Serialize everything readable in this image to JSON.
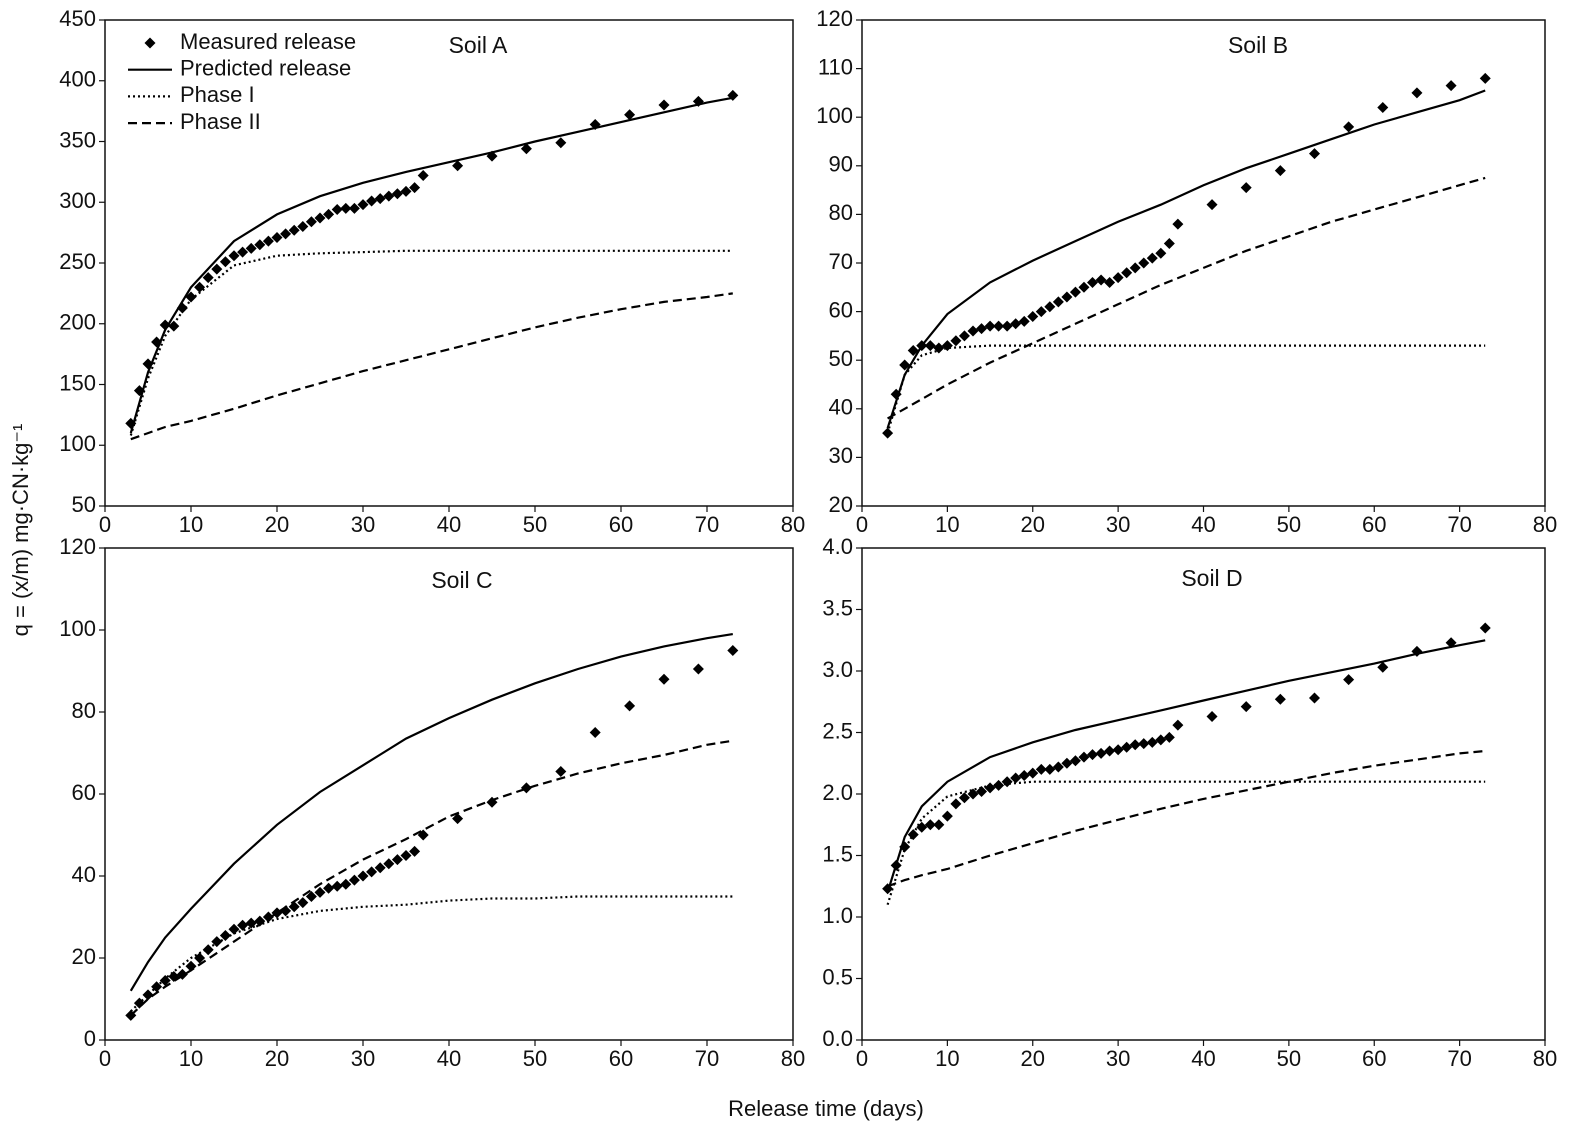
{
  "ylabel": "q = (x/m) mg·CN·kg⁻¹",
  "xlabel": "Release time (days)",
  "chart_data": [
    {
      "type": "line",
      "title": "Soil A",
      "xlim": [
        0,
        80
      ],
      "xticks": [
        0,
        10,
        20,
        30,
        40,
        50,
        60,
        70,
        80
      ],
      "ylim": [
        50,
        450
      ],
      "yticks": [
        50,
        100,
        150,
        200,
        250,
        300,
        350,
        400,
        450
      ],
      "legend": "upper left",
      "series": [
        {
          "name": "Measured release",
          "mode": "markers",
          "color": "#000000",
          "x": [
            3,
            4,
            5,
            6,
            7,
            8,
            9,
            10,
            11,
            12,
            13,
            14,
            15,
            16,
            17,
            18,
            19,
            20,
            21,
            22,
            23,
            24,
            25,
            26,
            27,
            28,
            29,
            30,
            31,
            32,
            33,
            34,
            35,
            36,
            37,
            41,
            45,
            49,
            53,
            57,
            61,
            65,
            69,
            73
          ],
          "values": [
            118,
            145,
            167,
            185,
            199,
            198,
            213,
            222,
            230,
            238,
            245,
            251,
            256,
            259,
            262,
            265,
            268,
            271,
            274,
            277,
            280,
            284,
            287,
            290,
            294,
            295,
            295,
            298,
            301,
            303,
            305,
            307,
            309,
            312,
            322,
            330,
            338,
            344,
            349,
            364,
            372,
            380,
            383,
            388
          ]
        },
        {
          "name": "Predicted release",
          "mode": "lines",
          "dash": "solid",
          "color": "#000000",
          "x": [
            3,
            5,
            7,
            10,
            15,
            20,
            25,
            30,
            35,
            40,
            45,
            50,
            55,
            60,
            65,
            70,
            73
          ],
          "values": [
            110,
            160,
            195,
            230,
            268,
            290,
            305,
            316,
            325,
            333,
            341,
            350,
            358,
            366,
            374,
            382,
            386
          ]
        },
        {
          "name": "Phase I",
          "mode": "lines",
          "dash": "dotted",
          "color": "#000000",
          "x": [
            3,
            5,
            7,
            10,
            15,
            20,
            25,
            30,
            35,
            40,
            45,
            50,
            55,
            60,
            65,
            70,
            73
          ],
          "values": [
            108,
            155,
            190,
            220,
            248,
            256,
            258,
            259,
            260,
            260,
            260,
            260,
            260,
            260,
            260,
            260,
            260
          ]
        },
        {
          "name": "Phase II",
          "mode": "lines",
          "dash": "dashed",
          "color": "#000000",
          "x": [
            3,
            5,
            7,
            10,
            15,
            20,
            25,
            30,
            35,
            40,
            45,
            50,
            55,
            60,
            65,
            70,
            73
          ],
          "values": [
            105,
            110,
            115,
            120,
            130,
            141,
            151,
            161,
            170,
            179,
            188,
            197,
            205,
            212,
            218,
            222,
            225
          ]
        }
      ]
    },
    {
      "type": "line",
      "title": "Soil B",
      "xlim": [
        0,
        80
      ],
      "xticks": [
        0,
        10,
        20,
        30,
        40,
        50,
        60,
        70,
        80
      ],
      "ylim": [
        20,
        120
      ],
      "yticks": [
        20,
        30,
        40,
        50,
        60,
        70,
        80,
        90,
        100,
        110,
        120
      ],
      "series": [
        {
          "mode": "markers",
          "color": "#000000",
          "x": [
            3,
            4,
            5,
            6,
            7,
            8,
            9,
            10,
            11,
            12,
            13,
            14,
            15,
            16,
            17,
            18,
            19,
            20,
            21,
            22,
            23,
            24,
            25,
            26,
            27,
            28,
            29,
            30,
            31,
            32,
            33,
            34,
            35,
            36,
            37,
            41,
            45,
            49,
            53,
            57,
            61,
            65,
            69,
            73
          ],
          "values": [
            35,
            43,
            49,
            52,
            53,
            53,
            52.5,
            53,
            54,
            55,
            56,
            56.5,
            57,
            57,
            57,
            57.5,
            58,
            59,
            60,
            61,
            62,
            63,
            64,
            65,
            66,
            66.5,
            66,
            67,
            68,
            69,
            70,
            71,
            72,
            74,
            78,
            82,
            85.5,
            89,
            92.5,
            98,
            102,
            105,
            106.5,
            108
          ]
        },
        {
          "mode": "lines",
          "dash": "solid",
          "color": "#000000",
          "x": [
            3,
            5,
            7,
            10,
            15,
            20,
            25,
            30,
            35,
            40,
            45,
            50,
            55,
            60,
            65,
            70,
            73
          ],
          "values": [
            36,
            47,
            53,
            59.5,
            66,
            70.5,
            74.5,
            78.5,
            82,
            86,
            89.5,
            92.5,
            95.5,
            98.5,
            101,
            103.5,
            105.5
          ]
        },
        {
          "mode": "lines",
          "dash": "dotted",
          "color": "#000000",
          "x": [
            3,
            5,
            7,
            10,
            15,
            20,
            25,
            30,
            35,
            40,
            45,
            50,
            55,
            60,
            65,
            70,
            73
          ],
          "values": [
            35,
            47,
            51,
            52.5,
            53,
            53,
            53,
            53,
            53,
            53,
            53,
            53,
            53,
            53,
            53,
            53,
            53
          ]
        },
        {
          "mode": "lines",
          "dash": "dashed",
          "color": "#000000",
          "x": [
            3,
            5,
            7,
            10,
            15,
            20,
            25,
            30,
            35,
            40,
            45,
            50,
            55,
            60,
            65,
            70,
            73
          ],
          "values": [
            38,
            40,
            42,
            45,
            49.5,
            53.5,
            57.5,
            61.5,
            65.5,
            69,
            72.5,
            75.5,
            78.5,
            81,
            83.5,
            86,
            87.5
          ]
        }
      ]
    },
    {
      "type": "line",
      "title": "Soil C",
      "xlim": [
        0,
        80
      ],
      "xticks": [
        0,
        10,
        20,
        30,
        40,
        50,
        60,
        70,
        80
      ],
      "ylim": [
        0,
        120
      ],
      "yticks": [
        0,
        20,
        40,
        60,
        80,
        100,
        120
      ],
      "series": [
        {
          "mode": "markers",
          "color": "#000000",
          "x": [
            3,
            4,
            5,
            6,
            7,
            8,
            9,
            10,
            11,
            12,
            13,
            14,
            15,
            16,
            17,
            18,
            19,
            20,
            21,
            22,
            23,
            24,
            25,
            26,
            27,
            28,
            29,
            30,
            31,
            32,
            33,
            34,
            35,
            36,
            37,
            41,
            45,
            49,
            53,
            57,
            61,
            65,
            69,
            73
          ],
          "values": [
            6,
            9,
            11,
            13,
            14.5,
            15.5,
            16,
            18,
            20,
            22,
            24,
            25.5,
            27,
            28,
            28.5,
            29,
            30,
            31,
            31.5,
            32.5,
            33.5,
            35,
            36,
            37,
            37.5,
            38,
            39,
            40,
            41,
            42,
            43,
            44,
            45,
            46,
            50,
            54,
            58,
            61.5,
            65.5,
            75,
            81.5,
            88,
            90.5,
            95
          ]
        },
        {
          "mode": "lines",
          "dash": "solid",
          "color": "#000000",
          "x": [
            3,
            5,
            7,
            10,
            15,
            20,
            25,
            30,
            35,
            40,
            45,
            50,
            55,
            60,
            65,
            70,
            73
          ],
          "values": [
            12,
            19,
            25,
            32,
            43,
            52.5,
            60.5,
            67,
            73.5,
            78.5,
            83,
            87,
            90.5,
            93.5,
            96,
            98,
            99
          ]
        },
        {
          "mode": "lines",
          "dash": "dotted",
          "color": "#000000",
          "x": [
            3,
            5,
            7,
            10,
            15,
            20,
            25,
            30,
            35,
            40,
            45,
            50,
            55,
            60,
            65,
            70,
            73
          ],
          "values": [
            7,
            11,
            15,
            20,
            26,
            29.5,
            31.5,
            32.5,
            33,
            34,
            34.5,
            34.5,
            35,
            35,
            35,
            35,
            35
          ]
        },
        {
          "mode": "lines",
          "dash": "dashed",
          "color": "#000000",
          "x": [
            3,
            5,
            7,
            10,
            15,
            20,
            25,
            30,
            35,
            40,
            45,
            50,
            55,
            60,
            65,
            70,
            73
          ],
          "values": [
            6,
            10,
            13,
            17,
            24,
            31,
            38,
            44,
            49,
            54.5,
            58.5,
            62,
            65,
            67.5,
            69.5,
            72,
            73
          ]
        }
      ]
    },
    {
      "type": "line",
      "title": "Soil D",
      "xlim": [
        0,
        80
      ],
      "xticks": [
        0,
        10,
        20,
        30,
        40,
        50,
        60,
        70,
        80
      ],
      "ylim": [
        0,
        4
      ],
      "yticks": [
        {
          "value": 0,
          "label": "0.0"
        },
        0.5,
        {
          "value": 1,
          "label": "1.0"
        },
        1.5,
        {
          "value": 2,
          "label": "2.0"
        },
        2.5,
        {
          "value": 3,
          "label": "3.0"
        },
        3.5,
        {
          "value": 4,
          "label": "4.0"
        }
      ],
      "series": [
        {
          "mode": "markers",
          "color": "#000000",
          "x": [
            3,
            4,
            5,
            6,
            7,
            8,
            9,
            10,
            11,
            12,
            13,
            14,
            15,
            16,
            17,
            18,
            19,
            20,
            21,
            22,
            23,
            24,
            25,
            26,
            27,
            28,
            29,
            30,
            31,
            32,
            33,
            34,
            35,
            36,
            37,
            41,
            45,
            49,
            53,
            57,
            61,
            65,
            69,
            73
          ],
          "values": [
            1.23,
            1.42,
            1.57,
            1.67,
            1.73,
            1.75,
            1.75,
            1.82,
            1.92,
            1.97,
            2.0,
            2.02,
            2.05,
            2.07,
            2.1,
            2.13,
            2.15,
            2.17,
            2.2,
            2.2,
            2.22,
            2.25,
            2.27,
            2.3,
            2.32,
            2.33,
            2.35,
            2.36,
            2.38,
            2.4,
            2.41,
            2.42,
            2.44,
            2.46,
            2.56,
            2.63,
            2.71,
            2.77,
            2.78,
            2.93,
            3.03,
            3.16,
            3.23,
            3.35
          ]
        },
        {
          "mode": "lines",
          "dash": "solid",
          "color": "#000000",
          "x": [
            3,
            5,
            7,
            10,
            15,
            20,
            25,
            30,
            35,
            40,
            45,
            50,
            55,
            60,
            65,
            70,
            73
          ],
          "values": [
            1.2,
            1.65,
            1.9,
            2.1,
            2.3,
            2.42,
            2.52,
            2.6,
            2.68,
            2.76,
            2.84,
            2.92,
            2.99,
            3.06,
            3.14,
            3.21,
            3.25
          ]
        },
        {
          "mode": "lines",
          "dash": "dotted",
          "color": "#000000",
          "x": [
            3,
            5,
            7,
            10,
            15,
            20,
            25,
            30,
            35,
            40,
            45,
            50,
            55,
            60,
            65,
            70,
            73
          ],
          "values": [
            1.1,
            1.55,
            1.8,
            1.98,
            2.07,
            2.1,
            2.1,
            2.1,
            2.1,
            2.1,
            2.1,
            2.1,
            2.1,
            2.1,
            2.1,
            2.1,
            2.1
          ]
        },
        {
          "mode": "lines",
          "dash": "dashed",
          "color": "#000000",
          "x": [
            3,
            5,
            7,
            10,
            15,
            20,
            25,
            30,
            35,
            40,
            45,
            50,
            55,
            60,
            65,
            70,
            73
          ],
          "values": [
            1.25,
            1.3,
            1.34,
            1.39,
            1.5,
            1.6,
            1.7,
            1.79,
            1.88,
            1.96,
            2.03,
            2.1,
            2.17,
            2.23,
            2.28,
            2.33,
            2.35
          ]
        }
      ]
    }
  ]
}
